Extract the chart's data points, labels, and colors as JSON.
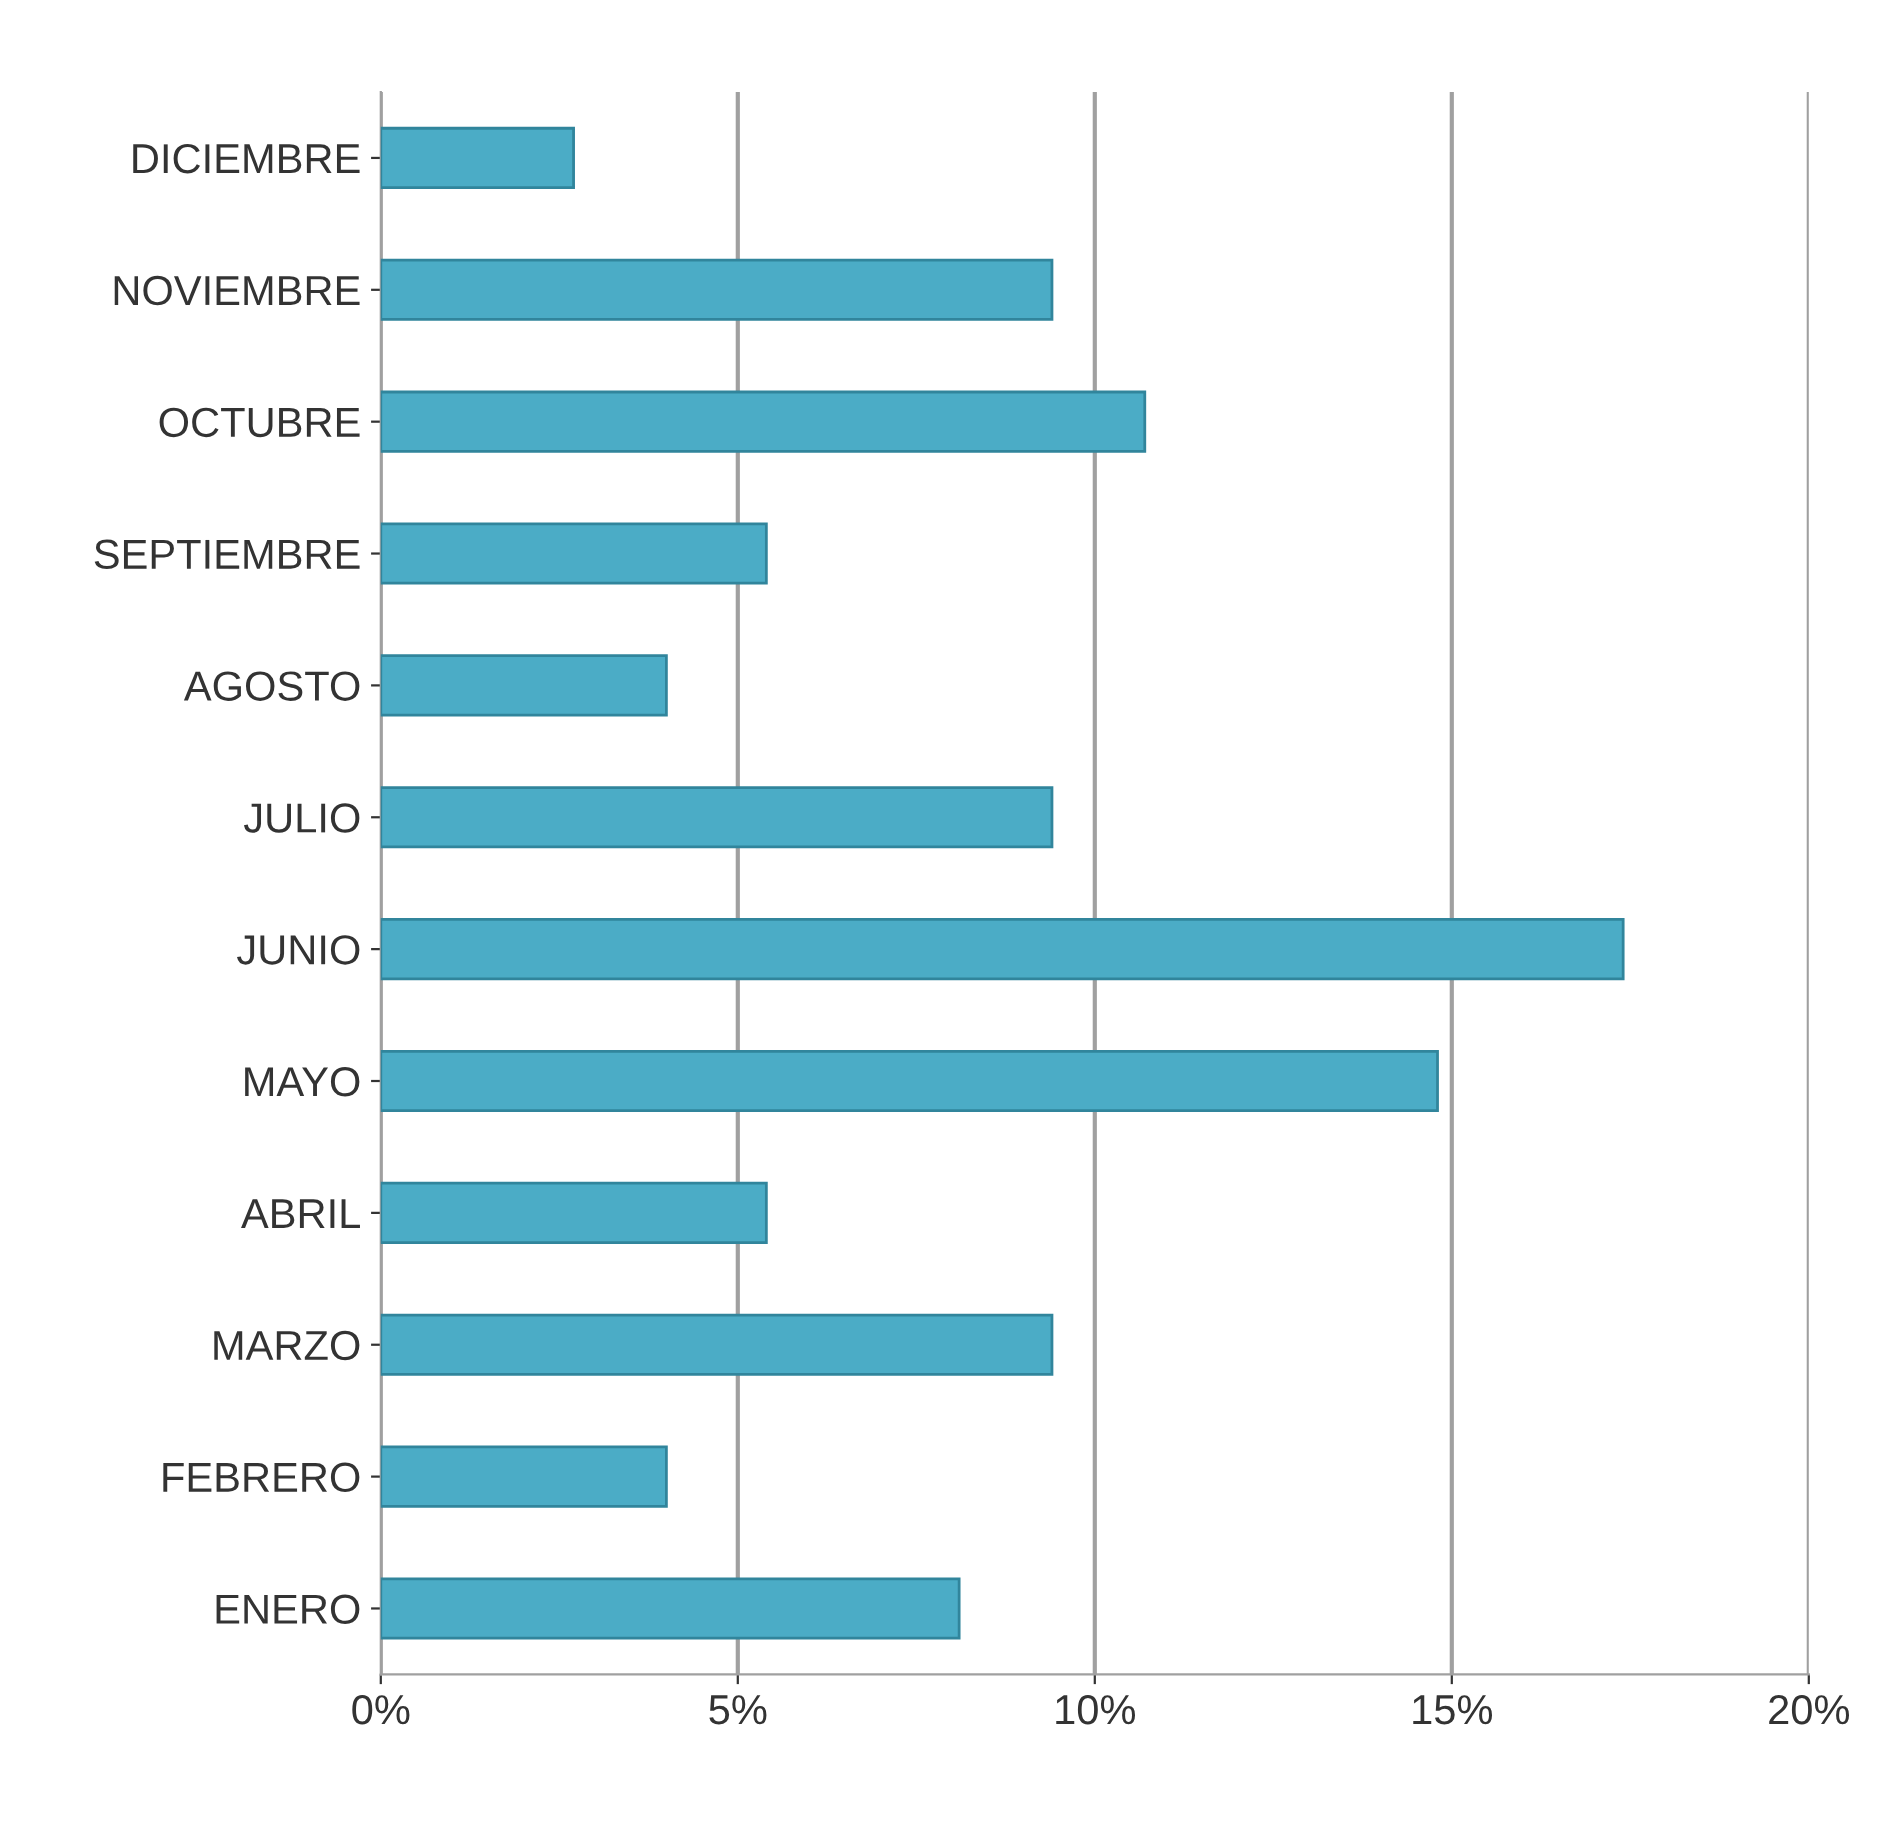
{
  "chart_data": {
    "type": "bar",
    "orientation": "horizontal",
    "categories": [
      "DICIEMBRE",
      "NOVIEMBRE",
      "OCTUBRE",
      "SEPTIEMBRE",
      "AGOSTO",
      "JULIO",
      "JUNIO",
      "MAYO",
      "ABRIL",
      "MARZO",
      "FEBRERO",
      "ENERO"
    ],
    "values": [
      2.7,
      9.4,
      10.7,
      5.4,
      4.0,
      9.4,
      17.4,
      14.8,
      5.4,
      9.4,
      4.0,
      8.1
    ],
    "color": "#4bacc6",
    "xlim": [
      0,
      20
    ],
    "xticks": [
      {
        "value": 0,
        "label": "0%"
      },
      {
        "value": 5,
        "label": "5%"
      },
      {
        "value": 10,
        "label": "10%"
      },
      {
        "value": 15,
        "label": "15%"
      },
      {
        "value": 20,
        "label": "20%"
      }
    ],
    "grid": "x"
  }
}
